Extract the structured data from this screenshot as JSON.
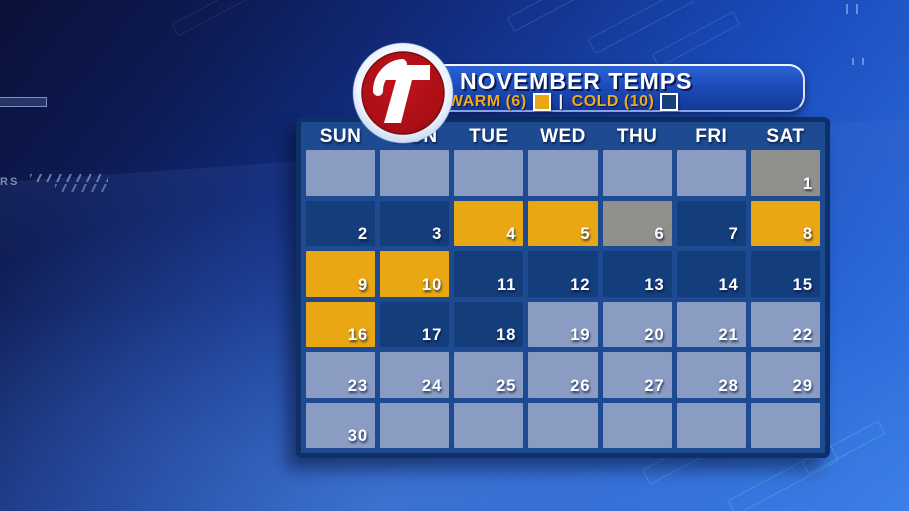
{
  "header": {
    "logo_channel": "7",
    "title": "NOVEMBER TEMPS",
    "legend": {
      "warm_label": "WARM (6)",
      "separator": "|",
      "cold_label": "COLD (10)"
    }
  },
  "colors": {
    "warm": "#e8a713",
    "cold": "#143d7c",
    "average": "#908f8b",
    "none": "#8a9cc2",
    "panel": "#1d4a90",
    "panel_border": "#0e3066",
    "gold_text": "#edaa1b",
    "logo_red": "#b01217"
  },
  "calendar": {
    "day_headers": [
      "SUN",
      "MON",
      "TUE",
      "WED",
      "THU",
      "FRI",
      "SAT"
    ],
    "cells": [
      {
        "day": "",
        "type": "none"
      },
      {
        "day": "",
        "type": "none"
      },
      {
        "day": "",
        "type": "none"
      },
      {
        "day": "",
        "type": "none"
      },
      {
        "day": "",
        "type": "none"
      },
      {
        "day": "",
        "type": "none"
      },
      {
        "day": "1",
        "type": "average"
      },
      {
        "day": "2",
        "type": "cold"
      },
      {
        "day": "3",
        "type": "cold"
      },
      {
        "day": "4",
        "type": "warm"
      },
      {
        "day": "5",
        "type": "warm"
      },
      {
        "day": "6",
        "type": "average"
      },
      {
        "day": "7",
        "type": "cold"
      },
      {
        "day": "8",
        "type": "warm"
      },
      {
        "day": "9",
        "type": "warm"
      },
      {
        "day": "10",
        "type": "warm"
      },
      {
        "day": "11",
        "type": "cold"
      },
      {
        "day": "12",
        "type": "cold"
      },
      {
        "day": "13",
        "type": "cold"
      },
      {
        "day": "14",
        "type": "cold"
      },
      {
        "day": "15",
        "type": "cold"
      },
      {
        "day": "16",
        "type": "warm"
      },
      {
        "day": "17",
        "type": "cold"
      },
      {
        "day": "18",
        "type": "cold"
      },
      {
        "day": "19",
        "type": "none"
      },
      {
        "day": "20",
        "type": "none"
      },
      {
        "day": "21",
        "type": "none"
      },
      {
        "day": "22",
        "type": "none"
      },
      {
        "day": "23",
        "type": "none"
      },
      {
        "day": "24",
        "type": "none"
      },
      {
        "day": "25",
        "type": "none"
      },
      {
        "day": "26",
        "type": "none"
      },
      {
        "day": "27",
        "type": "none"
      },
      {
        "day": "28",
        "type": "none"
      },
      {
        "day": "29",
        "type": "none"
      },
      {
        "day": "30",
        "type": "none"
      },
      {
        "day": "",
        "type": "none"
      },
      {
        "day": "",
        "type": "none"
      },
      {
        "day": "",
        "type": "none"
      },
      {
        "day": "",
        "type": "none"
      },
      {
        "day": "",
        "type": "none"
      },
      {
        "day": "",
        "type": "none"
      }
    ]
  },
  "background": {
    "partial_text": "RS"
  },
  "chart_data": {
    "type": "heatmap",
    "title": "NOVEMBER TEMPS",
    "month": "November",
    "weeks": 6,
    "first_day_weekday": "SAT",
    "legend": [
      {
        "label": "WARM",
        "count": 6,
        "color": "#e8a713"
      },
      {
        "label": "COLD",
        "count": 10,
        "color": "#143d7c"
      }
    ],
    "legend_position": "top",
    "day_categories": {
      "1": "average",
      "2": "cold",
      "3": "cold",
      "4": "warm",
      "5": "warm",
      "6": "average",
      "7": "cold",
      "8": "warm",
      "9": "warm",
      "10": "warm",
      "11": "cold",
      "12": "cold",
      "13": "cold",
      "14": "cold",
      "15": "cold",
      "16": "warm",
      "17": "cold",
      "18": "cold",
      "19": "no-data",
      "20": "no-data",
      "21": "no-data",
      "22": "no-data",
      "23": "no-data",
      "24": "no-data",
      "25": "no-data",
      "26": "no-data",
      "27": "no-data",
      "28": "no-data",
      "29": "no-data",
      "30": "no-data"
    }
  }
}
